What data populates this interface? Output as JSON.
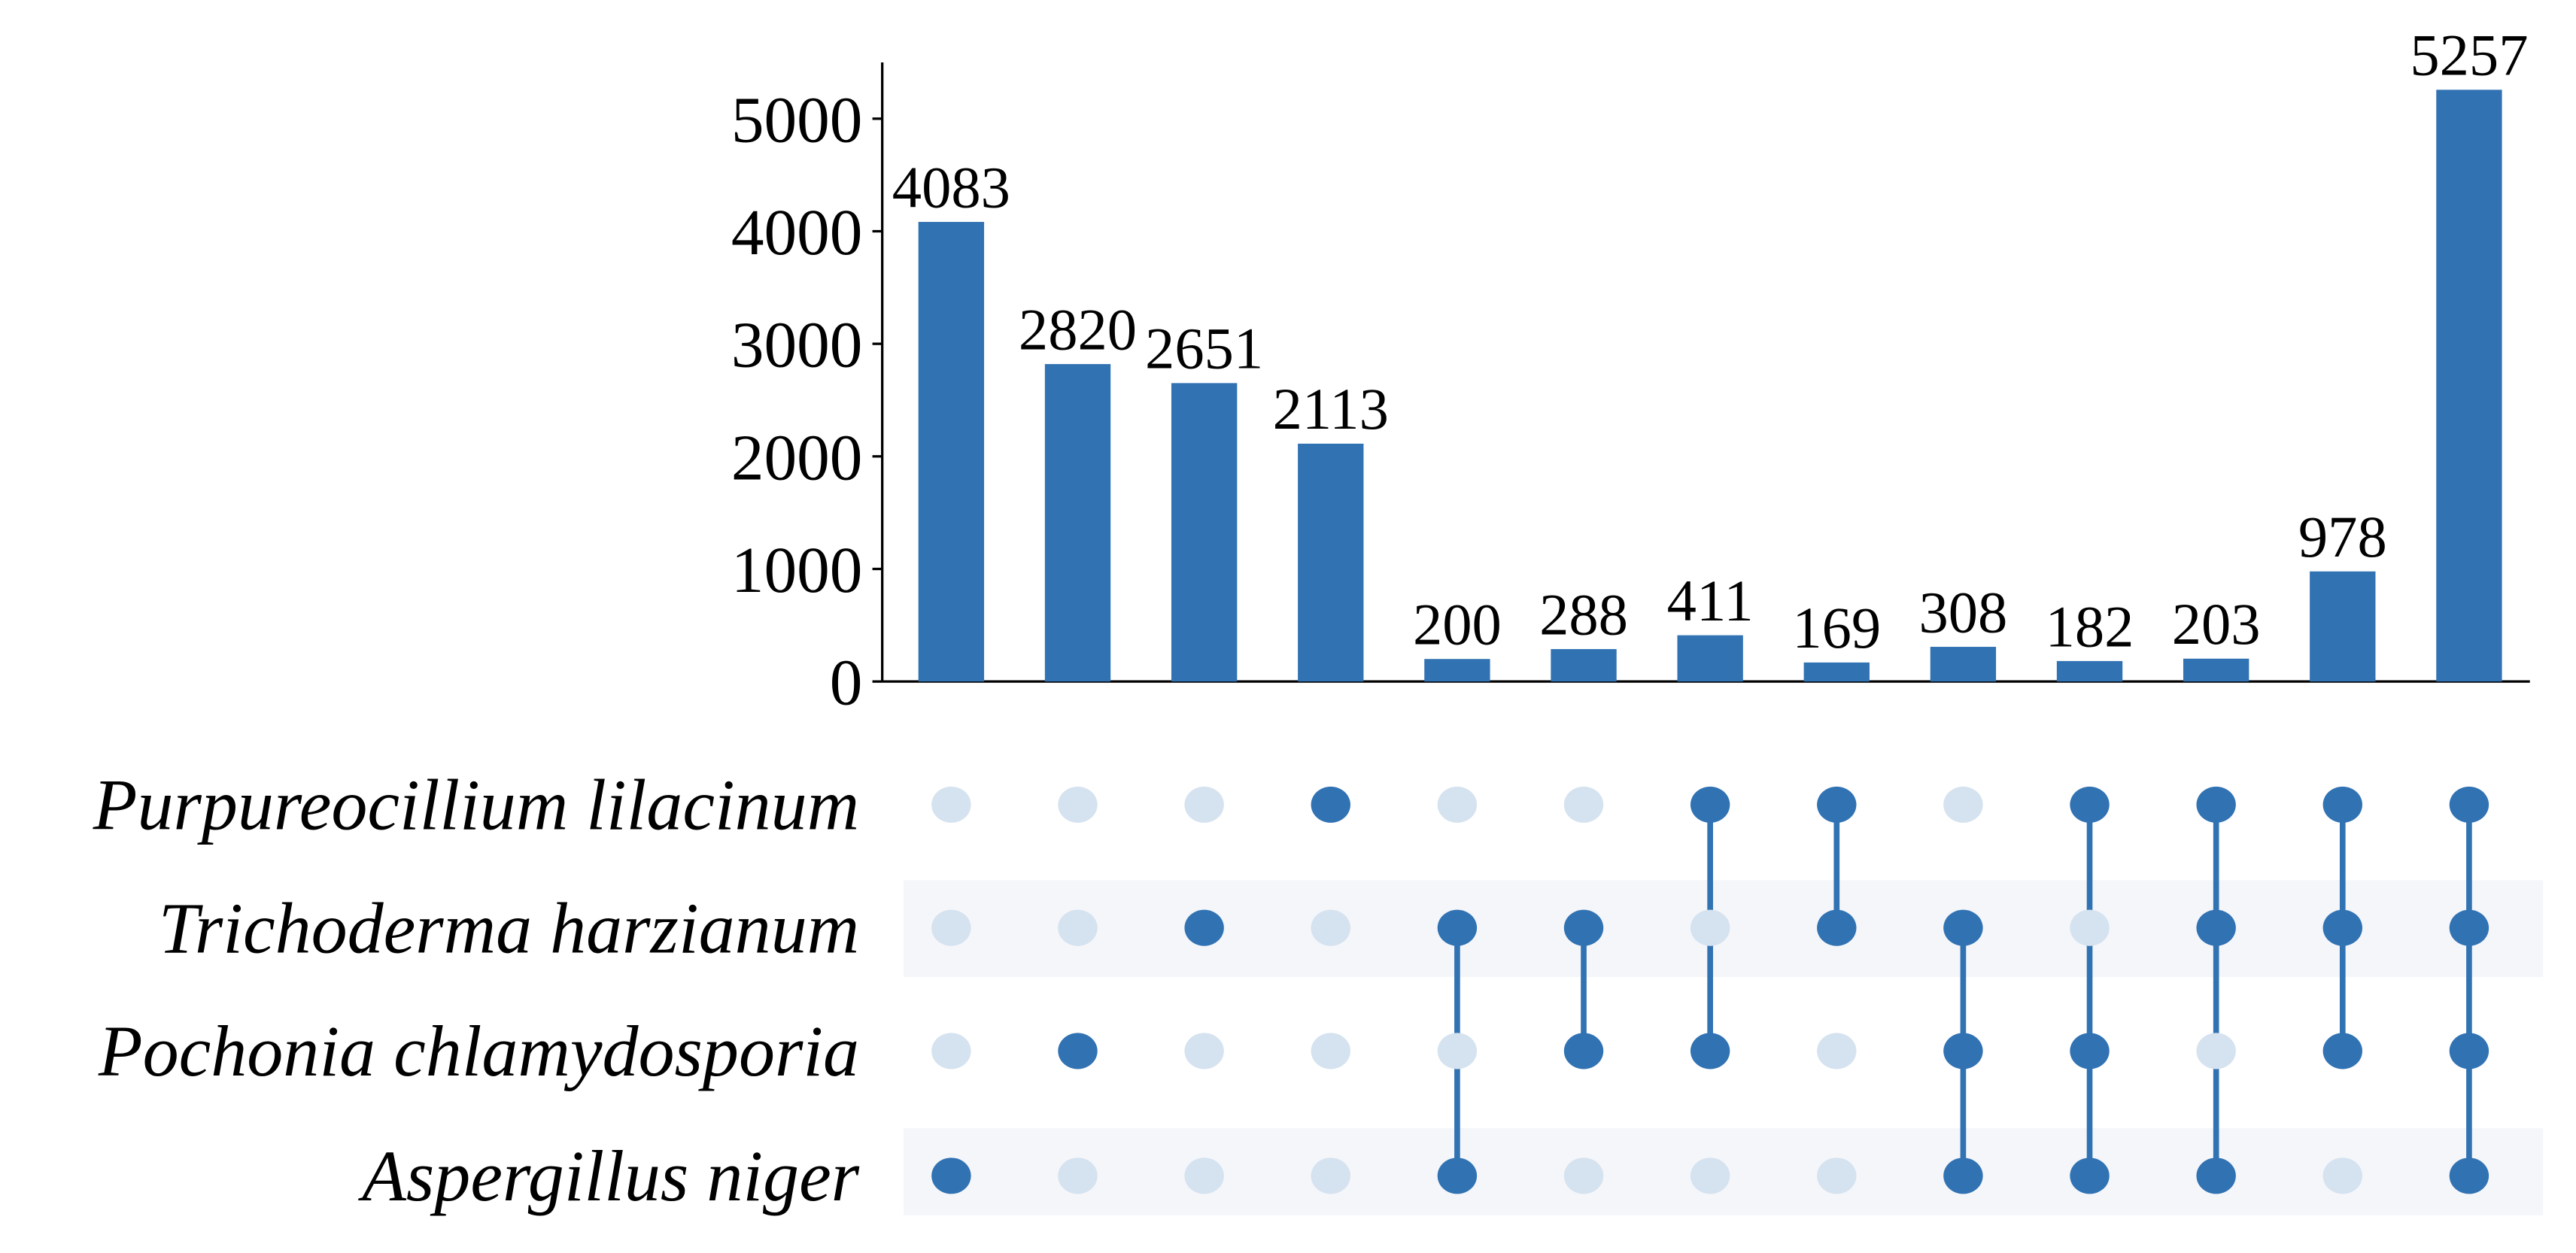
{
  "chart_data": {
    "type": "upset",
    "values": [
      4083,
      2820,
      2651,
      2113,
      200,
      288,
      411,
      169,
      308,
      182,
      203,
      978,
      5257
    ],
    "color": "#3172b3",
    "inactive_color": "#d5e2ef",
    "ylim": [
      0,
      5500
    ],
    "yticks": [
      0,
      1000,
      2000,
      3000,
      4000,
      5000
    ],
    "sets": [
      "Purpureocillium lilacinum",
      "Trichoderma harzianum",
      "Pochonia chlamydosporia",
      "Aspergillus niger"
    ],
    "membership": [
      [
        0,
        0,
        0,
        1
      ],
      [
        0,
        0,
        1,
        0
      ],
      [
        0,
        1,
        0,
        0
      ],
      [
        1,
        0,
        0,
        0
      ],
      [
        0,
        1,
        0,
        1
      ],
      [
        0,
        1,
        1,
        0
      ],
      [
        1,
        0,
        1,
        0
      ],
      [
        1,
        1,
        0,
        0
      ],
      [
        0,
        1,
        1,
        1
      ],
      [
        1,
        0,
        1,
        1
      ],
      [
        1,
        1,
        0,
        1
      ],
      [
        1,
        1,
        1,
        0
      ],
      [
        1,
        1,
        1,
        1
      ]
    ]
  }
}
